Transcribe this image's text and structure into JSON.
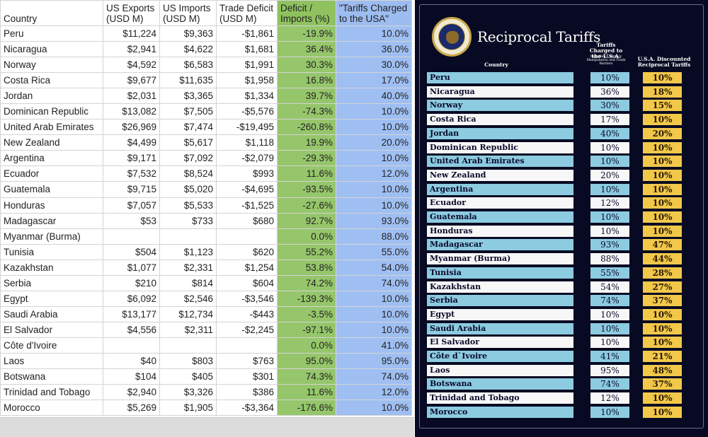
{
  "sheet": {
    "headers": [
      "Country",
      "US Exports (USD M)",
      "US Imports (USD M)",
      "Trade Deficit (USD M)",
      "Deficit / Imports (%)",
      "\"Tariffs Charged to the USA\""
    ],
    "rows": [
      [
        "Peru",
        "$11,224",
        "$9,363",
        "-$1,861",
        "-19.9%",
        "10.0%"
      ],
      [
        "Nicaragua",
        "$2,941",
        "$4,622",
        "$1,681",
        "36.4%",
        "36.0%"
      ],
      [
        "Norway",
        "$4,592",
        "$6,583",
        "$1,991",
        "30.3%",
        "30.0%"
      ],
      [
        "Costa Rica",
        "$9,677",
        "$11,635",
        "$1,958",
        "16.8%",
        "17.0%"
      ],
      [
        "Jordan",
        "$2,031",
        "$3,365",
        "$1,334",
        "39.7%",
        "40.0%"
      ],
      [
        "Dominican Republic",
        "$13,082",
        "$7,505",
        "-$5,576",
        "-74.3%",
        "10.0%"
      ],
      [
        "United Arab Emirates",
        "$26,969",
        "$7,474",
        "-$19,495",
        "-260.8%",
        "10.0%"
      ],
      [
        "New Zealand",
        "$4,499",
        "$5,617",
        "$1,118",
        "19.9%",
        "20.0%"
      ],
      [
        "Argentina",
        "$9,171",
        "$7,092",
        "-$2,079",
        "-29.3%",
        "10.0%"
      ],
      [
        "Ecuador",
        "$7,532",
        "$8,524",
        "$993",
        "11.6%",
        "12.0%"
      ],
      [
        "Guatemala",
        "$9,715",
        "$5,020",
        "-$4,695",
        "-93.5%",
        "10.0%"
      ],
      [
        "Honduras",
        "$7,057",
        "$5,533",
        "-$1,525",
        "-27.6%",
        "10.0%"
      ],
      [
        "Madagascar",
        "$53",
        "$733",
        "$680",
        "92.7%",
        "93.0%"
      ],
      [
        "Myanmar (Burma)",
        "",
        "",
        "",
        "0.0%",
        "88.0%"
      ],
      [
        "Tunisia",
        "$504",
        "$1,123",
        "$620",
        "55.2%",
        "55.0%"
      ],
      [
        "Kazakhstan",
        "$1,077",
        "$2,331",
        "$1,254",
        "53.8%",
        "54.0%"
      ],
      [
        "Serbia",
        "$210",
        "$814",
        "$604",
        "74.2%",
        "74.0%"
      ],
      [
        "Egypt",
        "$6,092",
        "$2,546",
        "-$3,546",
        "-139.3%",
        "10.0%"
      ],
      [
        "Saudi Arabia",
        "$13,177",
        "$12,734",
        "-$443",
        "-3.5%",
        "10.0%"
      ],
      [
        "El Salvador",
        "$4,556",
        "$2,311",
        "-$2,245",
        "-97.1%",
        "10.0%"
      ],
      [
        "Côte d'Ivoire",
        "",
        "",
        "",
        "0.0%",
        "41.0%"
      ],
      [
        "Laos",
        "$40",
        "$803",
        "$763",
        "95.0%",
        "95.0%"
      ],
      [
        "Botswana",
        "$104",
        "$405",
        "$301",
        "74.3%",
        "74.0%"
      ],
      [
        "Trinidad and Tobago",
        "$2,940",
        "$3,326",
        "$386",
        "11.6%",
        "12.0%"
      ],
      [
        "Morocco",
        "$5,269",
        "$1,905",
        "-$3,364",
        "-176.6%",
        "10.0%"
      ]
    ]
  },
  "poster": {
    "title": "Reciprocal Tariffs",
    "col_country": "Country",
    "col_charged": "Tariffs Charged to the U.S.A.",
    "col_charged_sub": "Including Currency Manipulation and Trade Barriers",
    "col_discounted": "U.S.A. Discounted Reciprocal Tariffs",
    "rows": [
      {
        "country": "Peru",
        "charged": "10%",
        "discounted": "10%"
      },
      {
        "country": "Nicaragua",
        "charged": "36%",
        "discounted": "18%"
      },
      {
        "country": "Norway",
        "charged": "30%",
        "discounted": "15%"
      },
      {
        "country": "Costa Rica",
        "charged": "17%",
        "discounted": "10%"
      },
      {
        "country": "Jordan",
        "charged": "40%",
        "discounted": "20%"
      },
      {
        "country": "Dominican Republic",
        "charged": "10%",
        "discounted": "10%"
      },
      {
        "country": "United Arab Emirates",
        "charged": "10%",
        "discounted": "10%"
      },
      {
        "country": "New Zealand",
        "charged": "20%",
        "discounted": "10%"
      },
      {
        "country": "Argentina",
        "charged": "10%",
        "discounted": "10%"
      },
      {
        "country": "Ecuador",
        "charged": "12%",
        "discounted": "10%"
      },
      {
        "country": "Guatemala",
        "charged": "10%",
        "discounted": "10%"
      },
      {
        "country": "Honduras",
        "charged": "10%",
        "discounted": "10%"
      },
      {
        "country": "Madagascar",
        "charged": "93%",
        "discounted": "47%"
      },
      {
        "country": "Myanmar (Burma)",
        "charged": "88%",
        "discounted": "44%"
      },
      {
        "country": "Tunisia",
        "charged": "55%",
        "discounted": "28%"
      },
      {
        "country": "Kazakhstan",
        "charged": "54%",
        "discounted": "27%"
      },
      {
        "country": "Serbia",
        "charged": "74%",
        "discounted": "37%"
      },
      {
        "country": "Egypt",
        "charged": "10%",
        "discounted": "10%"
      },
      {
        "country": "Saudi Arabia",
        "charged": "10%",
        "discounted": "10%"
      },
      {
        "country": "El Salvador",
        "charged": "10%",
        "discounted": "10%"
      },
      {
        "country": "Côte d`Ivoire",
        "charged": "41%",
        "discounted": "21%"
      },
      {
        "country": "Laos",
        "charged": "95%",
        "discounted": "48%"
      },
      {
        "country": "Botswana",
        "charged": "74%",
        "discounted": "37%"
      },
      {
        "country": "Trinidad and Tobago",
        "charged": "12%",
        "discounted": "10%"
      },
      {
        "country": "Morocco",
        "charged": "10%",
        "discounted": "10%"
      }
    ]
  },
  "colors": {
    "deficit_column": "#96c66b",
    "tariff_column": "#9fbff2",
    "poster_background": "#070a22",
    "row_blue": "#8ccbe0",
    "row_white": "#f7f7f7",
    "discount_gold": "#f2c84a"
  }
}
